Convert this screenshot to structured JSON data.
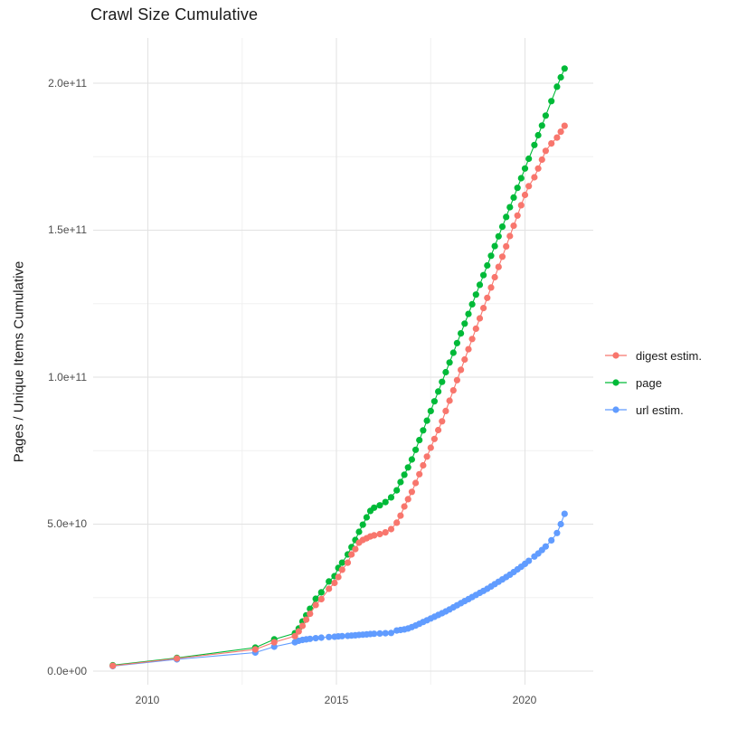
{
  "title": "Crawl Size Cumulative",
  "legend": {
    "items": [
      {
        "label": "digest estim.",
        "color": "#F8766D"
      },
      {
        "label": "page",
        "color": "#00BA38"
      },
      {
        "label": "url estim.",
        "color": "#619CFF"
      }
    ]
  },
  "chart_data": {
    "type": "line",
    "markers": true,
    "title": "Crawl Size Cumulative",
    "xlabel": "",
    "ylabel": "Pages / Unique Items Cumulative",
    "xlim": [
      2008.5,
      2021.8
    ],
    "ylim": [
      0,
      215000000000.0
    ],
    "x_ticks": [
      2010,
      2015,
      2020
    ],
    "x_tick_labels": [
      "2010",
      "2015",
      "2020"
    ],
    "x_minor_ticks": [
      2012.5,
      2017.5
    ],
    "y_ticks": [
      0,
      50000000000.0,
      100000000000.0,
      150000000000.0,
      200000000000.0
    ],
    "y_tick_labels": [
      "0.0e+00",
      "5.0e+10",
      "1.0e+11",
      "1.5e+11",
      "2.0e+11"
    ],
    "y_minor_ticks": [
      25000000000.0,
      75000000000.0,
      125000000000.0,
      175000000000.0
    ],
    "grid": true,
    "legend_position": "right",
    "x": [
      2009.07,
      2010.77,
      2012.85,
      2013.35,
      2013.9,
      2014.0,
      2014.1,
      2014.2,
      2014.3,
      2014.45,
      2014.6,
      2014.8,
      2014.95,
      2015.05,
      2015.15,
      2015.3,
      2015.4,
      2015.5,
      2015.6,
      2015.7,
      2015.8,
      2015.9,
      2016.0,
      2016.15,
      2016.3,
      2016.45,
      2016.6,
      2016.7,
      2016.8,
      2016.9,
      2017.0,
      2017.1,
      2017.2,
      2017.3,
      2017.4,
      2017.5,
      2017.6,
      2017.7,
      2017.8,
      2017.9,
      2018.0,
      2018.1,
      2018.2,
      2018.3,
      2018.4,
      2018.5,
      2018.6,
      2018.7,
      2018.8,
      2018.9,
      2019.0,
      2019.1,
      2019.2,
      2019.3,
      2019.4,
      2019.5,
      2019.6,
      2019.7,
      2019.8,
      2019.9,
      2020.0,
      2020.1,
      2020.25,
      2020.35,
      2020.45,
      2020.55,
      2020.7,
      2020.85,
      2020.95,
      2021.05
    ],
    "series": [
      {
        "name": "digest estim.",
        "color": "#F8766D",
        "values": [
          1800000000.0,
          4300000000.0,
          7400000000.0,
          9800000000.0,
          11900000000.0,
          13500000000.0,
          15400000000.0,
          17500000000.0,
          19500000000.0,
          22500000000.0,
          24500000000.0,
          28000000000.0,
          30000000000.0,
          32000000000.0,
          34500000000.0,
          36900000000.0,
          39700000000.0,
          41500000000.0,
          43700000000.0,
          44600000000.0,
          45200000000.0,
          45800000000.0,
          46200000000.0,
          46600000000.0,
          47200000000.0,
          48300000000.0,
          50500000000.0,
          52900000000.0,
          56000000000.0,
          58500000000.0,
          61000000000.0,
          64000000000.0,
          67000000000.0,
          70000000000.0,
          73000000000.0,
          76000000000.0,
          79000000000.0,
          82000000000.0,
          85000000000.0,
          88500000000.0,
          92000000000.0,
          95500000000.0,
          99000000000.0,
          102500000000.0,
          106000000000.0,
          109500000000.0,
          113000000000.0,
          116500000000.0,
          120000000000.0,
          123500000000.0,
          127000000000.0,
          130500000000.0,
          134000000000.0,
          137500000000.0,
          141000000000.0,
          144500000000.0,
          148000000000.0,
          151500000000.0,
          155000000000.0,
          158500000000.0,
          162000000000.0,
          165000000000.0,
          168000000000.0,
          171000000000.0,
          174000000000.0,
          177000000000.0,
          179500000000.0,
          181500000000.0,
          183500000000.0,
          185500000000.0
        ]
      },
      {
        "name": "page",
        "color": "#00BA38",
        "values": [
          2000000000.0,
          4500000000.0,
          8000000000.0,
          10800000000.0,
          12900000000.0,
          14500000000.0,
          16900000000.0,
          19000000000.0,
          21200000000.0,
          24600000000.0,
          26800000000.0,
          30500000000.0,
          32300000000.0,
          35100000000.0,
          36900000000.0,
          39700000000.0,
          42200000000.0,
          44600000000.0,
          47400000000.0,
          49800000000.0,
          52300000000.0,
          54500000000.0,
          55600000000.0,
          56400000000.0,
          57500000000.0,
          59100000000.0,
          61500000000.0,
          64300000000.0,
          66800000000.0,
          69300000000.0,
          72000000000.0,
          75300000000.0,
          78600000000.0,
          81900000000.0,
          85200000000.0,
          88500000000.0,
          91800000000.0,
          95100000000.0,
          98400000000.0,
          101700000000.0,
          105000000000.0,
          108300000000.0,
          111600000000.0,
          114900000000.0,
          118200000000.0,
          121500000000.0,
          124800000000.0,
          128100000000.0,
          131400000000.0,
          134700000000.0,
          138000000000.0,
          141300000000.0,
          144600000000.0,
          147900000000.0,
          151200000000.0,
          154500000000.0,
          157800000000.0,
          161100000000.0,
          164400000000.0,
          167700000000.0,
          171000000000.0,
          174300000000.0,
          179000000000.0,
          182300000000.0,
          185600000000.0,
          189000000000.0,
          193900000000.0,
          198800000000.0,
          202000000000.0,
          205000000000.0
        ]
      },
      {
        "name": "url estim.",
        "color": "#619CFF",
        "values": [
          1700000000.0,
          4000000000.0,
          6300000000.0,
          8300000000.0,
          9800000000.0,
          10300000000.0,
          10600000000.0,
          10800000000.0,
          11000000000.0,
          11200000000.0,
          11400000000.0,
          11600000000.0,
          11700000000.0,
          11800000000.0,
          11900000000.0,
          12000000000.0,
          12100000000.0,
          12200000000.0,
          12300000000.0,
          12400000000.0,
          12500000000.0,
          12600000000.0,
          12700000000.0,
          12800000000.0,
          12900000000.0,
          13000000000.0,
          13800000000.0,
          14000000000.0,
          14200000000.0,
          14500000000.0,
          15000000000.0,
          15500000000.0,
          16100000000.0,
          16700000000.0,
          17300000000.0,
          17900000000.0,
          18500000000.0,
          19100000000.0,
          19700000000.0,
          20300000000.0,
          21000000000.0,
          21700000000.0,
          22400000000.0,
          23100000000.0,
          23800000000.0,
          24500000000.0,
          25200000000.0,
          25900000000.0,
          26600000000.0,
          27300000000.0,
          28000000000.0,
          28800000000.0,
          29600000000.0,
          30400000000.0,
          31200000000.0,
          32000000000.0,
          32800000000.0,
          33700000000.0,
          34600000000.0,
          35500000000.0,
          36500000000.0,
          37500000000.0,
          39000000000.0,
          40000000000.0,
          41200000000.0,
          42400000000.0,
          44500000000.0,
          47000000000.0,
          50000000000.0,
          53500000000.0
        ]
      }
    ]
  }
}
